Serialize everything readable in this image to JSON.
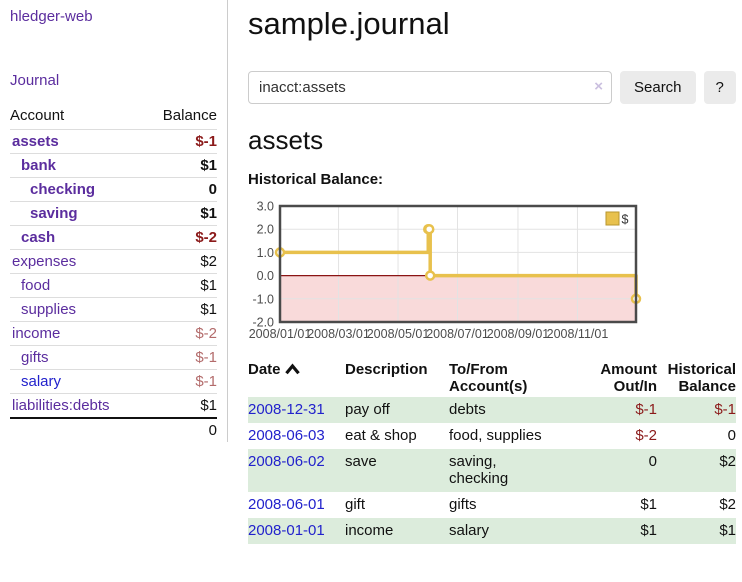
{
  "app": {
    "brand": "hledger-web",
    "nav_journal": "Journal"
  },
  "sidebar": {
    "header": {
      "account": "Account",
      "balance": "Balance"
    },
    "accounts": [
      {
        "name": "assets",
        "indent": 1,
        "bold": true,
        "balance": "$-1",
        "neg": "strong",
        "link": "visited"
      },
      {
        "name": "bank",
        "indent": 2,
        "bold": true,
        "balance": "$1",
        "neg": "none",
        "link": "visited"
      },
      {
        "name": "checking",
        "indent": 3,
        "bold": true,
        "balance": "0",
        "neg": "none",
        "link": "visited"
      },
      {
        "name": "saving",
        "indent": 3,
        "bold": true,
        "balance": "$1",
        "neg": "none",
        "link": "visited"
      },
      {
        "name": "cash",
        "indent": 2,
        "bold": true,
        "balance": "$-2",
        "neg": "strong",
        "link": "visited"
      },
      {
        "name": "expenses",
        "indent": 1,
        "bold": false,
        "balance": "$2",
        "neg": "none",
        "link": "visited"
      },
      {
        "name": "food",
        "indent": 2,
        "bold": false,
        "balance": "$1",
        "neg": "none",
        "link": "visited"
      },
      {
        "name": "supplies",
        "indent": 2,
        "bold": false,
        "balance": "$1",
        "neg": "none",
        "link": "visited"
      },
      {
        "name": "income",
        "indent": 1,
        "bold": false,
        "balance": "$-2",
        "neg": "soft",
        "link": "visited"
      },
      {
        "name": "gifts",
        "indent": 2,
        "bold": false,
        "balance": "$-1",
        "neg": "soft",
        "link": "visited"
      },
      {
        "name": "salary",
        "indent": 2,
        "bold": false,
        "balance": "$-1",
        "neg": "soft",
        "link": "new"
      },
      {
        "name": "liabilities:debts",
        "indent": 1,
        "bold": false,
        "balance": "$1",
        "neg": "none",
        "link": "visited"
      }
    ],
    "total": "0"
  },
  "header": {
    "title": "sample.journal"
  },
  "search": {
    "value": "inacct:assets",
    "clear_icon": "×",
    "button_label": "Search",
    "help_label": "?"
  },
  "register": {
    "heading": "assets",
    "chart_label": "Historical Balance:"
  },
  "chart_data": {
    "type": "line",
    "step": true,
    "title": "Historical Balance:",
    "series": [
      {
        "name": "$",
        "color": "#e8c14d",
        "marker_fill": "#ffffff",
        "points": [
          [
            "2008-01-01",
            1
          ],
          [
            "2008-06-01",
            2
          ],
          [
            "2008-06-02",
            2
          ],
          [
            "2008-06-03",
            0
          ],
          [
            "2008-12-31",
            -1
          ]
        ]
      }
    ],
    "x_range": [
      "2008-01-01",
      "2008-12-31"
    ],
    "ylim": [
      -2,
      3
    ],
    "y_ticks": [
      "3.0",
      "2.0",
      "1.0",
      "0.0",
      "-1.0",
      "-2.0"
    ],
    "x_ticks": [
      "2008/01/01",
      "2008/03/01",
      "2008/05/01",
      "2008/07/01",
      "2008/09/01",
      "2008/11/01"
    ],
    "legend": {
      "label": "$",
      "position": "top-right"
    },
    "grid": true,
    "grid_color": "#e3e3e3",
    "negative_region_color": "#f9dada",
    "zero_line_color": "#8b1414",
    "border_color": "#4a4a4a"
  },
  "table": {
    "headers": {
      "date": "Date",
      "description": "Description",
      "accounts": "To/From\nAccount(s)",
      "amount": "Amount\nOut/In",
      "balance": "Historical\nBalance"
    },
    "rows": [
      {
        "date": "2008-12-31",
        "description": "pay off",
        "accounts": "debts",
        "amount": "$-1",
        "amount_neg": true,
        "balance": "$-1",
        "balance_neg": true
      },
      {
        "date": "2008-06-03",
        "description": "eat & shop",
        "accounts": "food, supplies",
        "amount": "$-2",
        "amount_neg": true,
        "balance": "0",
        "balance_neg": false
      },
      {
        "date": "2008-06-02",
        "description": "save",
        "accounts": "saving,\nchecking",
        "amount": "0",
        "amount_neg": false,
        "balance": "$2",
        "balance_neg": false
      },
      {
        "date": "2008-06-01",
        "description": "gift",
        "accounts": "gifts",
        "amount": "$1",
        "amount_neg": false,
        "balance": "$2",
        "balance_neg": false
      },
      {
        "date": "2008-01-01",
        "description": "income",
        "accounts": "salary",
        "amount": "$1",
        "amount_neg": false,
        "balance": "$1",
        "balance_neg": false
      }
    ]
  }
}
